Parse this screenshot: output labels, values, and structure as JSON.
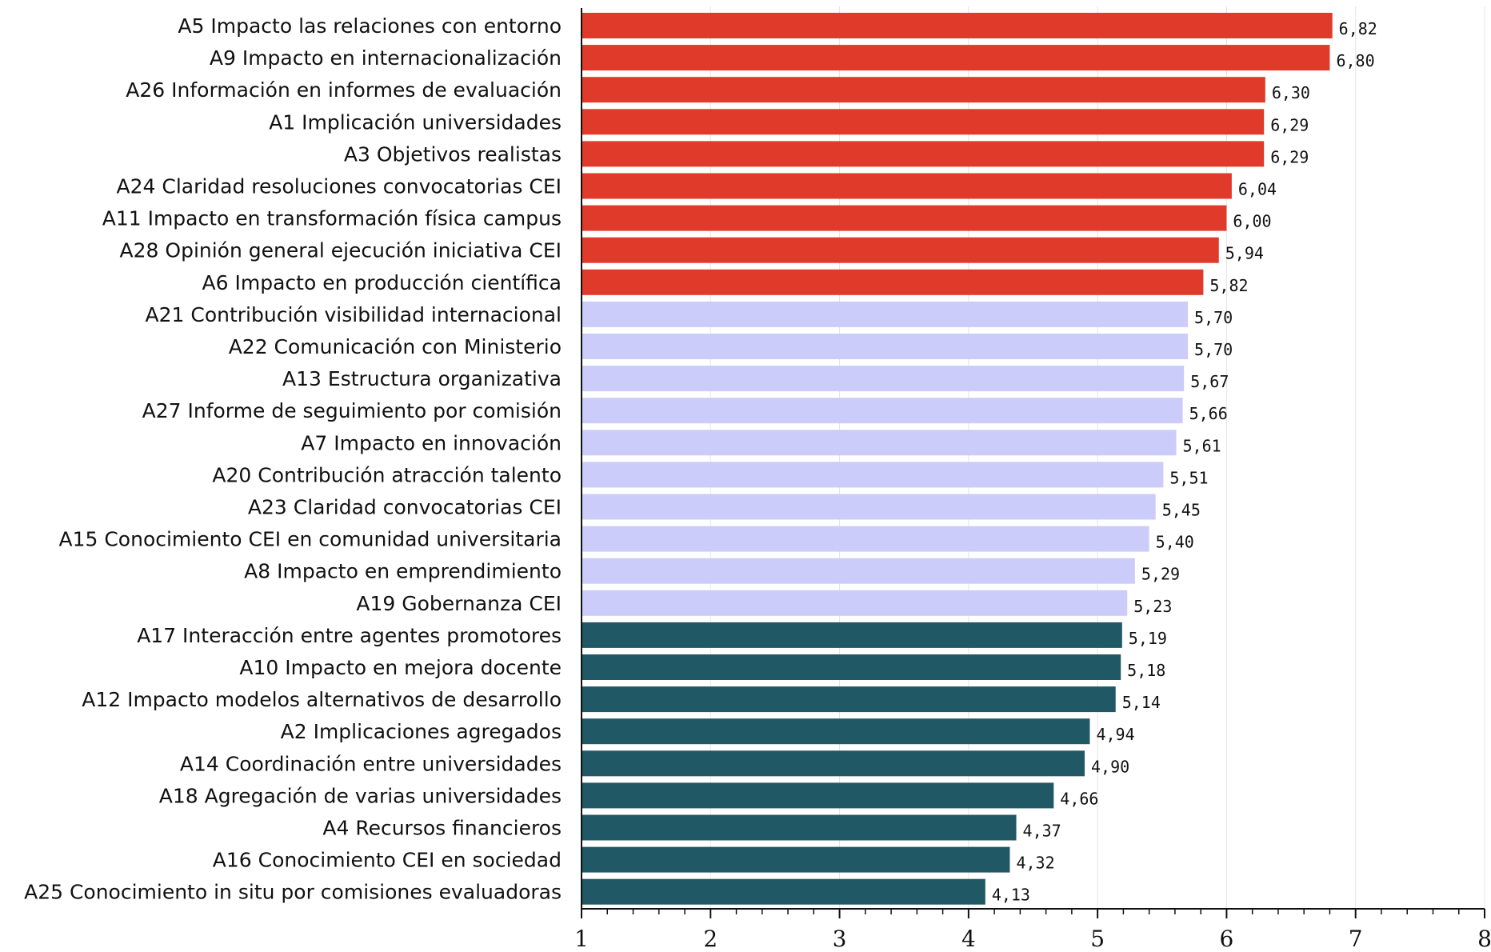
{
  "colors": {
    "high": "#e03a2a",
    "mid": "#ccccfa",
    "low": "#205865"
  },
  "chart_data": {
    "type": "bar",
    "orientation": "horizontal",
    "xlim": [
      1,
      8
    ],
    "xticks": [
      "1",
      "2",
      "3",
      "4",
      "5",
      "6",
      "7",
      "8"
    ],
    "grid": true,
    "items": [
      {
        "label": "A5 Impacto las relaciones con entorno",
        "value": 6.82,
        "value_label": "6,82",
        "group": "high"
      },
      {
        "label": "A9 Impacto en internacionalización",
        "value": 6.8,
        "value_label": "6,80",
        "group": "high"
      },
      {
        "label": "A26 Información en informes de evaluación",
        "value": 6.3,
        "value_label": "6,30",
        "group": "high"
      },
      {
        "label": "A1 Implicación universidades",
        "value": 6.29,
        "value_label": "6,29",
        "group": "high"
      },
      {
        "label": "A3 Objetivos realistas",
        "value": 6.29,
        "value_label": "6,29",
        "group": "high"
      },
      {
        "label": "A24 Claridad resoluciones convocatorias CEI",
        "value": 6.04,
        "value_label": "6,04",
        "group": "high"
      },
      {
        "label": "A11 Impacto en transformación física campus",
        "value": 6.0,
        "value_label": "6,00",
        "group": "high"
      },
      {
        "label": "A28 Opinión general ejecución iniciativa CEI",
        "value": 5.94,
        "value_label": "5,94",
        "group": "high"
      },
      {
        "label": "A6 Impacto en producción científica",
        "value": 5.82,
        "value_label": "5,82",
        "group": "high"
      },
      {
        "label": "A21 Contribución visibilidad internacional",
        "value": 5.7,
        "value_label": "5,70",
        "group": "mid"
      },
      {
        "label": "A22 Comunicación con Ministerio",
        "value": 5.7,
        "value_label": "5,70",
        "group": "mid"
      },
      {
        "label": "A13 Estructura organizativa",
        "value": 5.67,
        "value_label": "5,67",
        "group": "mid"
      },
      {
        "label": "A27 Informe de seguimiento por comisión",
        "value": 5.66,
        "value_label": "5,66",
        "group": "mid"
      },
      {
        "label": "A7 Impacto en innovación",
        "value": 5.61,
        "value_label": "5,61",
        "group": "mid"
      },
      {
        "label": "A20 Contribución atracción talento",
        "value": 5.51,
        "value_label": "5,51",
        "group": "mid"
      },
      {
        "label": "A23 Claridad convocatorias CEI",
        "value": 5.45,
        "value_label": "5,45",
        "group": "mid"
      },
      {
        "label": "A15 Conocimiento CEI en comunidad universitaria",
        "value": 5.4,
        "value_label": "5,40",
        "group": "mid"
      },
      {
        "label": "A8 Impacto en emprendimiento",
        "value": 5.29,
        "value_label": "5,29",
        "group": "mid"
      },
      {
        "label": "A19 Gobernanza CEI",
        "value": 5.23,
        "value_label": "5,23",
        "group": "mid"
      },
      {
        "label": "A17 Interacción entre agentes promotores",
        "value": 5.19,
        "value_label": "5,19",
        "group": "low"
      },
      {
        "label": "A10 Impacto en mejora docente",
        "value": 5.18,
        "value_label": "5,18",
        "group": "low"
      },
      {
        "label": "A12 Impacto modelos alternativos de desarrollo",
        "value": 5.14,
        "value_label": "5,14",
        "group": "low"
      },
      {
        "label": "A2 Implicaciones agregados",
        "value": 4.94,
        "value_label": "4,94",
        "group": "low"
      },
      {
        "label": "A14 Coordinación entre universidades",
        "value": 4.9,
        "value_label": "4,90",
        "group": "low"
      },
      {
        "label": "A18 Agregación de varias universidades",
        "value": 4.66,
        "value_label": "4,66",
        "group": "low"
      },
      {
        "label": "A4 Recursos financieros",
        "value": 4.37,
        "value_label": "4,37",
        "group": "low"
      },
      {
        "label": "A16 Conocimiento CEI en sociedad",
        "value": 4.32,
        "value_label": "4,32",
        "group": "low"
      },
      {
        "label": "A25 Conocimiento in situ por comisiones evaluadoras",
        "value": 4.13,
        "value_label": "4,13",
        "group": "low"
      }
    ]
  }
}
